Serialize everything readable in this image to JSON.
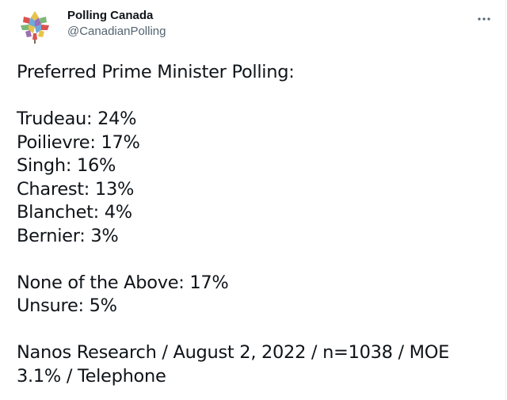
{
  "account": {
    "display_name": "Polling Canada",
    "handle": "@CanadianPolling",
    "avatar_icon": "maple-leaf-mosaic-logo"
  },
  "menu": {
    "more_icon": "more-options-icon",
    "more_glyph": "···"
  },
  "tweet": {
    "heading": "Preferred Prime Minister Polling:",
    "candidates": [
      {
        "text": "Trudeau: 24%"
      },
      {
        "text": "Poilievre: 17%"
      },
      {
        "text": "Singh: 16%"
      },
      {
        "text": "Charest: 13%"
      },
      {
        "text": "Blanchet: 4%"
      },
      {
        "text": "Bernier: 3%"
      }
    ],
    "other": [
      {
        "text": "None of the Above: 17%"
      },
      {
        "text": "Unsure: 5%"
      }
    ],
    "source_line_1": "Nanos Research / August 2, 2022 / n=1038 / MOE",
    "source_line_2": "3.1% / Telephone"
  },
  "colors": {
    "text_primary": "#0f1419",
    "text_secondary": "#536471",
    "logo_red": "#d9534f",
    "logo_green": "#7cb87a",
    "logo_blue": "#6fa8dc",
    "logo_purple": "#9b6fb5",
    "logo_yellow": "#e8c34a"
  }
}
